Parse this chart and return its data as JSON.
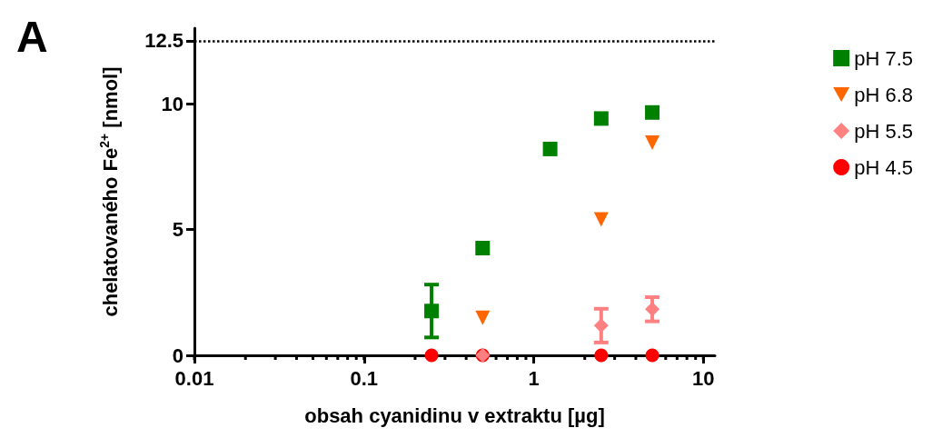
{
  "chart_data": {
    "type": "scatter",
    "xlabel": "obsah cyanidinu v extraktu [µg]",
    "ylabel": "chelatovaného Fe$^{2+}$ [nmol]",
    "annotations": [
      "A"
    ],
    "log": "x",
    "xlim": [
      0.01,
      11.7
    ],
    "xticks": [
      0.01,
      0.1,
      1,
      10
    ],
    "ylim": [
      0,
      13
    ],
    "yticks": [
      0,
      5,
      10,
      12.5
    ],
    "grid": false,
    "legend": "top right",
    "ref_lines": [
      {
        "axis": "y",
        "value": 12.5,
        "line_style": "dotted",
        "color": "#000000"
      }
    ],
    "series": [
      {
        "name": "pH 7.5",
        "color": "#008000",
        "marker": "square",
        "x": [
          0.25,
          0.5,
          1.25,
          2.5,
          5
        ],
        "values": [
          1.76,
          4.26,
          8.2,
          9.41,
          9.65
        ],
        "errors": [
          1.05,
          null,
          null,
          null,
          null
        ]
      },
      {
        "name": "pH 6.8",
        "color": "#ff6600",
        "marker": "triangle",
        "x": [
          0.5,
          2.5,
          5
        ],
        "values": [
          1.49,
          5.4,
          8.45
        ]
      },
      {
        "name": "pH 5.5",
        "color": "#ff8080",
        "marker": "diamond",
        "x": [
          0.5,
          2.5,
          5
        ],
        "values": [
          0,
          1.18,
          1.83
        ],
        "errors": [
          null,
          0.67,
          0.48
        ]
      },
      {
        "name": "pH 4.5",
        "color": "#ff0000",
        "marker": "circle",
        "x": [
          0.25,
          0.5,
          2.5,
          5
        ],
        "values": [
          0,
          0,
          0,
          0
        ]
      }
    ]
  }
}
